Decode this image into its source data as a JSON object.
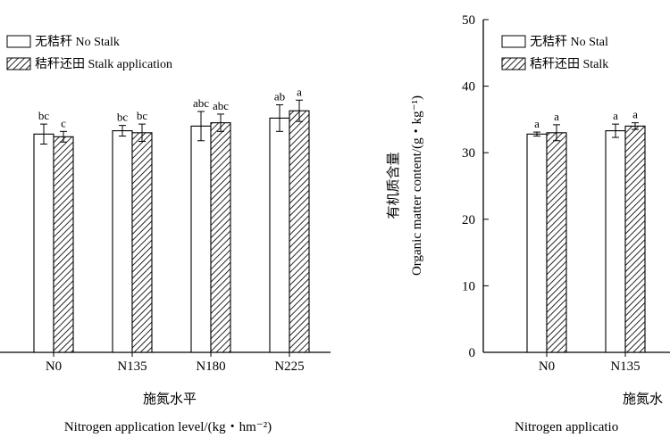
{
  "chart_data": [
    {
      "type": "bar",
      "categories": [
        "N0",
        "N135",
        "N180",
        "N225"
      ],
      "series": [
        {
          "name": "无秸秆 No Stalk",
          "values": [
            32.8,
            33.3,
            34.0,
            35.2
          ],
          "errors": [
            1.5,
            0.8,
            2.2,
            2.0
          ],
          "letters": [
            "bc",
            "bc",
            "abc",
            "ab"
          ]
        },
        {
          "name": "秸秆还田 Stalk application",
          "values": [
            32.4,
            33.0,
            34.5,
            36.3
          ],
          "errors": [
            0.8,
            1.3,
            1.3,
            1.6
          ],
          "letters": [
            "c",
            "bc",
            "abc",
            "a"
          ]
        }
      ],
      "xlabel": [
        "施氮水平",
        "Nitrogen application level/(kg・hm⁻²)"
      ],
      "ylabel": [],
      "ylim": [
        0,
        50
      ],
      "yticks": [],
      "legend_position": "top-left",
      "grid": false
    },
    {
      "type": "bar",
      "categories": [
        "N0",
        "N135"
      ],
      "series": [
        {
          "name": "无秸秆 No Stal",
          "values": [
            32.8,
            33.3
          ],
          "errors": [
            0.3,
            1.0
          ],
          "letters": [
            "a",
            "a"
          ]
        },
        {
          "name": "秸秆还田 Stalk",
          "values": [
            33.0,
            34.0
          ],
          "errors": [
            1.2,
            0.5
          ],
          "letters": [
            "a",
            "a"
          ]
        }
      ],
      "xlabel": [
        "施氮水",
        "Nitrogen applicatio"
      ],
      "ylabel": [
        "有机质含量",
        "Organic matter content/(g・kg⁻¹)"
      ],
      "ylim": [
        0,
        50
      ],
      "yticks": [
        0,
        10,
        20,
        30,
        40,
        50
      ],
      "legend_position": "top-left",
      "grid": false
    }
  ]
}
